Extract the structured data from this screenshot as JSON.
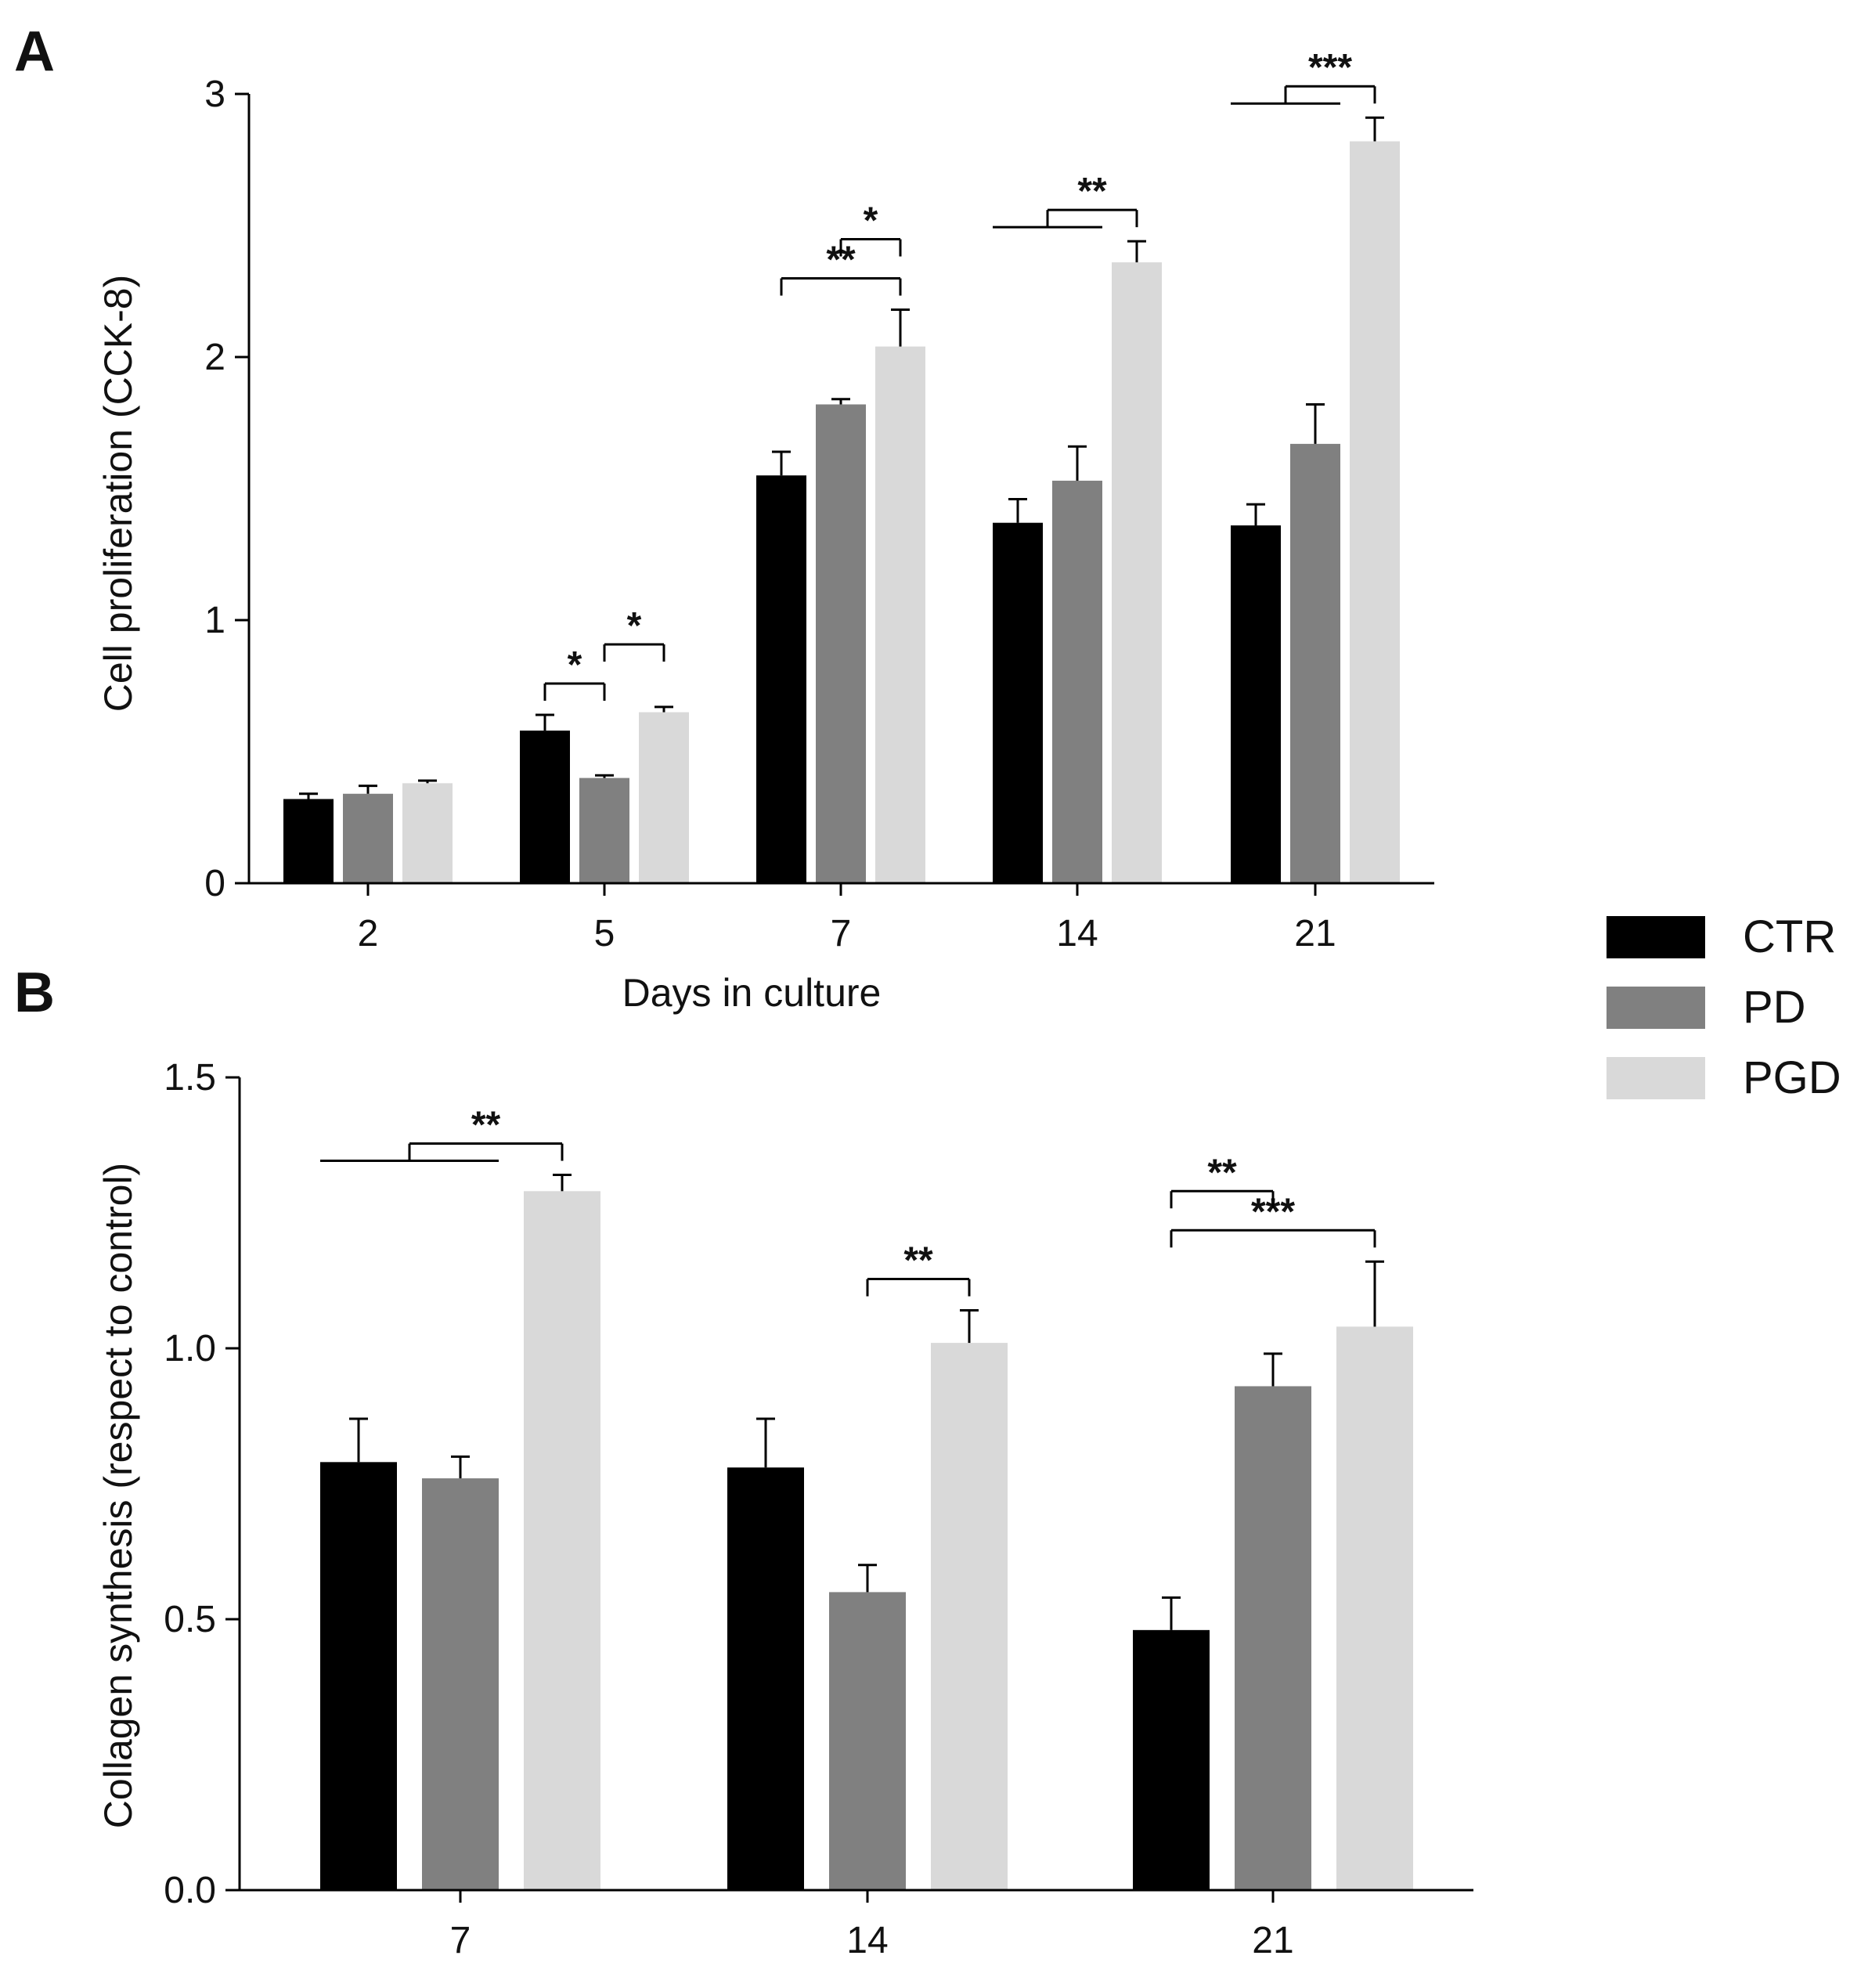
{
  "colors": {
    "CTR": "#000000",
    "PD": "#808080",
    "PGD": "#d9d9d9"
  },
  "legend": {
    "position": "right",
    "entries": [
      "CTR",
      "PD",
      "PGD"
    ]
  },
  "chart_data": [
    {
      "panel": "A",
      "type": "bar",
      "xlabel": "Days in culture",
      "ylabel": "Cell proliferation (CCK-8)",
      "ylim": [
        0,
        3
      ],
      "yticks": [
        "0",
        "1",
        "2",
        "3"
      ],
      "categories": [
        "2",
        "5",
        "7",
        "14",
        "21"
      ],
      "series": [
        {
          "name": "CTR",
          "values": [
            0.32,
            0.58,
            1.55,
            1.37,
            1.36
          ],
          "errors": [
            0.02,
            0.06,
            0.09,
            0.09,
            0.08
          ]
        },
        {
          "name": "PD",
          "values": [
            0.34,
            0.4,
            1.82,
            1.53,
            1.67
          ],
          "errors": [
            0.03,
            0.01,
            0.02,
            0.13,
            0.15
          ]
        },
        {
          "name": "PGD",
          "values": [
            0.38,
            0.65,
            2.04,
            2.36,
            2.82
          ],
          "errors": [
            0.01,
            0.02,
            0.14,
            0.08,
            0.09
          ]
        }
      ],
      "significance": [
        {
          "category": "5",
          "from": "CTR",
          "to": "PD",
          "label": "*"
        },
        {
          "category": "5",
          "from": "PD",
          "to": "PGD",
          "label": "*"
        },
        {
          "category": "7",
          "from": "CTR",
          "to": "PGD",
          "label": "**"
        },
        {
          "category": "7",
          "from": "PD",
          "to": "PGD",
          "label": "*"
        },
        {
          "category": "14",
          "from": "CTR+PD",
          "to": "PGD",
          "label": "**"
        },
        {
          "category": "21",
          "from": "CTR+PD",
          "to": "PGD",
          "label": "***"
        }
      ]
    },
    {
      "panel": "B",
      "type": "bar",
      "xlabel": "",
      "ylabel": "Collagen synthesis (respect to control)",
      "ylim": [
        0,
        1.5
      ],
      "yticks": [
        "0.0",
        "0.5",
        "1.0",
        "1.5"
      ],
      "categories": [
        "7",
        "14",
        "21"
      ],
      "series": [
        {
          "name": "CTR",
          "values": [
            0.79,
            0.78,
            0.48
          ],
          "errors": [
            0.08,
            0.09,
            0.06
          ]
        },
        {
          "name": "PD",
          "values": [
            0.76,
            0.55,
            0.93
          ],
          "errors": [
            0.04,
            0.05,
            0.06
          ]
        },
        {
          "name": "PGD",
          "values": [
            1.29,
            1.01,
            1.04
          ],
          "errors": [
            0.03,
            0.06,
            0.12
          ]
        }
      ],
      "significance": [
        {
          "category": "7",
          "from": "CTR+PD",
          "to": "PGD",
          "label": "**"
        },
        {
          "category": "14",
          "from": "PD",
          "to": "PGD",
          "label": "**"
        },
        {
          "category": "21",
          "from": "CTR",
          "to": "PGD",
          "label": "***"
        },
        {
          "category": "21",
          "from": "CTR",
          "to": "PD",
          "label": "**"
        }
      ]
    }
  ]
}
